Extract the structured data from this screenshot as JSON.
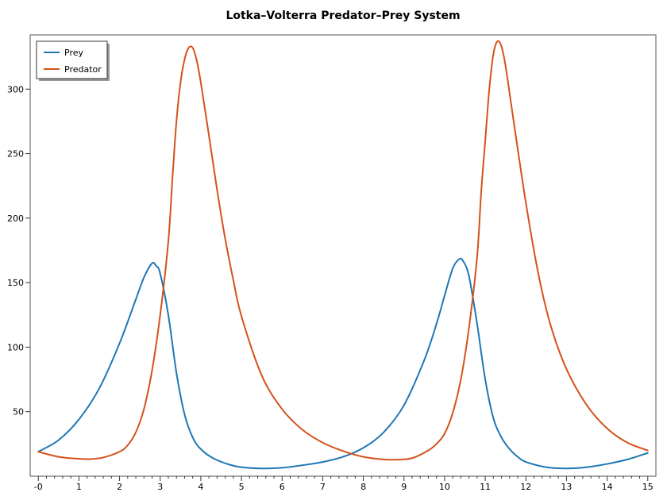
{
  "chart_data": {
    "type": "line",
    "title": "Lotka–Volterra Predator–Prey System",
    "xlabel": "",
    "ylabel": "",
    "xlim": [
      -0.2,
      15.2
    ],
    "ylim": [
      0,
      342
    ],
    "x_ticks": [
      "-0",
      "1",
      "2",
      "3",
      "4",
      "5",
      "6",
      "7",
      "8",
      "9",
      "10",
      "11",
      "12",
      "13",
      "14",
      "15"
    ],
    "y_ticks": [
      50,
      100,
      150,
      200,
      250,
      300
    ],
    "grid": false,
    "legend": "top-left",
    "series": [
      {
        "name": "Prey",
        "color": "#1f77b4",
        "points": [
          [
            0,
            19
          ],
          [
            0.5,
            28
          ],
          [
            1,
            44
          ],
          [
            1.5,
            68
          ],
          [
            2,
            103
          ],
          [
            2.4,
            137
          ],
          [
            2.6,
            154
          ],
          [
            2.8,
            165
          ],
          [
            2.9,
            163
          ],
          [
            3,
            157
          ],
          [
            3.2,
            125
          ],
          [
            3.4,
            80
          ],
          [
            3.6,
            48
          ],
          [
            3.8,
            30
          ],
          [
            4,
            21
          ],
          [
            4.3,
            14
          ],
          [
            4.7,
            9
          ],
          [
            5,
            7
          ],
          [
            5.5,
            6
          ],
          [
            6,
            6.5
          ],
          [
            6.5,
            8.5
          ],
          [
            7,
            11
          ],
          [
            7.5,
            15
          ],
          [
            8,
            22
          ],
          [
            8.5,
            34
          ],
          [
            9,
            55
          ],
          [
            9.5,
            90
          ],
          [
            9.8,
            118
          ],
          [
            10,
            140
          ],
          [
            10.2,
            161
          ],
          [
            10.35,
            168
          ],
          [
            10.45,
            167
          ],
          [
            10.6,
            155
          ],
          [
            10.8,
            118
          ],
          [
            11,
            75
          ],
          [
            11.2,
            45
          ],
          [
            11.4,
            30
          ],
          [
            11.6,
            21
          ],
          [
            11.8,
            15
          ],
          [
            12,
            11
          ],
          [
            12.5,
            7
          ],
          [
            13,
            6
          ],
          [
            13.5,
            7
          ],
          [
            14,
            9.5
          ],
          [
            14.5,
            13
          ],
          [
            15,
            18
          ]
        ]
      },
      {
        "name": "Predator",
        "color": "#d4521b",
        "points": [
          [
            0,
            19
          ],
          [
            0.5,
            15
          ],
          [
            1,
            13.5
          ],
          [
            1.3,
            13.3
          ],
          [
            1.6,
            14.5
          ],
          [
            2,
            19
          ],
          [
            2.2,
            24
          ],
          [
            2.4,
            34
          ],
          [
            2.6,
            52
          ],
          [
            2.8,
            82
          ],
          [
            3,
            125
          ],
          [
            3.2,
            182
          ],
          [
            3.3,
            230
          ],
          [
            3.4,
            275
          ],
          [
            3.5,
            305
          ],
          [
            3.6,
            323
          ],
          [
            3.7,
            332
          ],
          [
            3.8,
            332
          ],
          [
            3.9,
            322
          ],
          [
            4,
            305
          ],
          [
            4.2,
            264
          ],
          [
            4.4,
            222
          ],
          [
            4.6,
            184
          ],
          [
            4.8,
            152
          ],
          [
            5,
            124
          ],
          [
            5.5,
            78
          ],
          [
            6,
            52
          ],
          [
            6.5,
            36
          ],
          [
            7,
            26
          ],
          [
            7.5,
            19.5
          ],
          [
            8,
            15
          ],
          [
            8.5,
            13
          ],
          [
            8.8,
            12.8
          ],
          [
            9.2,
            14
          ],
          [
            9.6,
            20
          ],
          [
            9.8,
            25
          ],
          [
            10,
            33
          ],
          [
            10.2,
            49
          ],
          [
            10.4,
            75
          ],
          [
            10.6,
            115
          ],
          [
            10.8,
            170
          ],
          [
            10.9,
            220
          ],
          [
            11,
            260
          ],
          [
            11.1,
            300
          ],
          [
            11.2,
            327
          ],
          [
            11.3,
            337
          ],
          [
            11.4,
            333
          ],
          [
            11.5,
            318
          ],
          [
            11.7,
            275
          ],
          [
            12,
            212
          ],
          [
            12.3,
            158
          ],
          [
            12.6,
            118
          ],
          [
            13,
            83
          ],
          [
            13.5,
            55
          ],
          [
            14,
            37
          ],
          [
            14.5,
            26
          ],
          [
            15,
            20
          ]
        ]
      }
    ]
  }
}
